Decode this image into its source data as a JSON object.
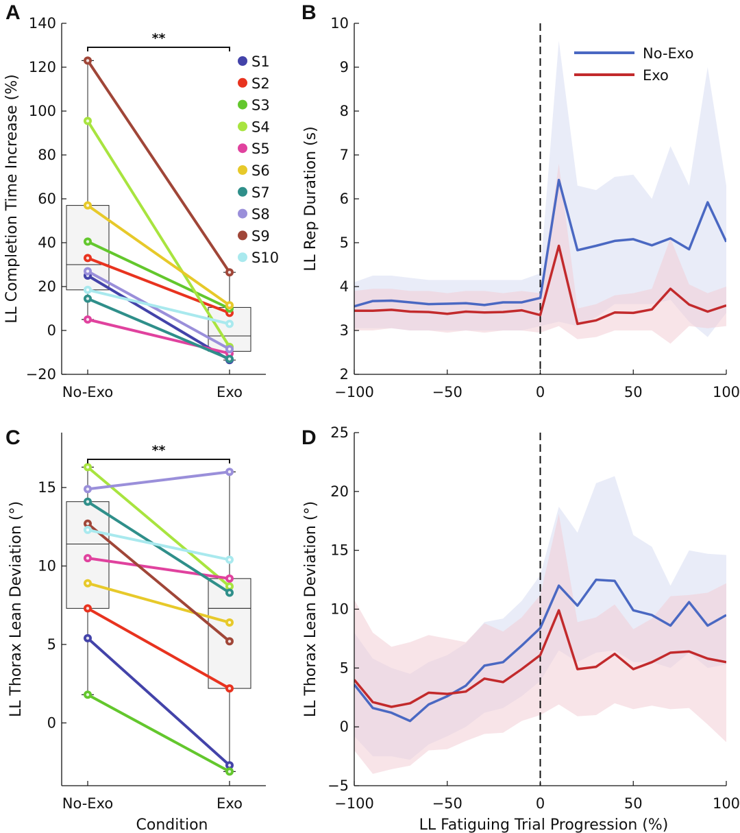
{
  "colors": {
    "S1": "#4343a9",
    "S2": "#e8331f",
    "S3": "#63c72d",
    "S4": "#a8e43f",
    "S5": "#e0429e",
    "S6": "#e7c92a",
    "S7": "#2f8f8a",
    "S8": "#9a8fda",
    "S9": "#a04638",
    "S10": "#a9e9ee",
    "no_exo": "#4a68c2",
    "exo": "#c22a2c",
    "no_exo_band": "#d7dcf3",
    "exo_band": "#f3cdd6",
    "no_exo_inner": "#bcc6ec",
    "exo_inner": "#ebb3c3"
  },
  "chart_data": [
    {
      "panel": "A",
      "type": "box+paired-lines",
      "categories": [
        "No-Exo",
        "Exo"
      ],
      "ylabel": "LL Completion Time Increase (%)",
      "xlabel": "",
      "ylim": [
        -20,
        140
      ],
      "yticks": [
        -20,
        0,
        20,
        40,
        60,
        80,
        100,
        120,
        140
      ],
      "significance": "**",
      "legend_position": "top-right",
      "boxes": [
        {
          "category": "No-Exo",
          "q1": 18.5,
          "median": 30,
          "q3": 57,
          "whisker_low": 5,
          "whisker_high": 123
        },
        {
          "category": "Exo",
          "q1": -9.5,
          "median": -2.5,
          "q3": 10.5,
          "whisker_low": -13.5,
          "whisker_high": 26.5
        }
      ],
      "series": [
        {
          "name": "S1",
          "values": [
            25,
            -13.5
          ]
        },
        {
          "name": "S2",
          "values": [
            33,
            8
          ]
        },
        {
          "name": "S3",
          "values": [
            40.5,
            10
          ]
        },
        {
          "name": "S4",
          "values": [
            95.5,
            -7.5
          ]
        },
        {
          "name": "S5",
          "values": [
            5,
            -10.5
          ]
        },
        {
          "name": "S6",
          "values": [
            57,
            11.5
          ]
        },
        {
          "name": "S7",
          "values": [
            14.5,
            -13
          ]
        },
        {
          "name": "S8",
          "values": [
            27,
            -8.5
          ]
        },
        {
          "name": "S9",
          "values": [
            123,
            26.5
          ]
        },
        {
          "name": "S10",
          "values": [
            18.5,
            3
          ]
        }
      ]
    },
    {
      "panel": "B",
      "type": "line",
      "xlabel": "",
      "ylabel": "LL Rep Duration (s)",
      "xlim": [
        -100,
        100
      ],
      "ylim": [
        2,
        10
      ],
      "xticks": [
        -100,
        -50,
        0,
        50,
        100
      ],
      "yticks": [
        2,
        3,
        4,
        5,
        6,
        7,
        8,
        9,
        10
      ],
      "vline_x": 0,
      "legend_position": "top-right",
      "x": [
        -100,
        -90,
        -80,
        -70,
        -60,
        -50,
        -40,
        -30,
        -20,
        -10,
        0,
        10,
        20,
        30,
        40,
        50,
        60,
        70,
        80,
        90,
        100
      ],
      "series": [
        {
          "name": "No-Exo",
          "values": [
            3.55,
            3.67,
            3.68,
            3.64,
            3.6,
            3.61,
            3.62,
            3.58,
            3.64,
            3.64,
            3.74,
            6.43,
            4.83,
            4.93,
            5.04,
            5.08,
            4.94,
            5.1,
            4.85,
            5.92,
            5.02
          ],
          "band_low": [
            3.05,
            3.05,
            3.05,
            3.0,
            3.0,
            3.0,
            3.0,
            3.0,
            3.0,
            3.0,
            3.1,
            3.2,
            3.1,
            3.3,
            3.6,
            3.6,
            3.6,
            3.7,
            3.2,
            2.85,
            3.4
          ],
          "band_high": [
            4.1,
            4.25,
            4.25,
            4.2,
            4.15,
            4.15,
            4.15,
            4.15,
            4.15,
            4.15,
            4.3,
            9.6,
            6.3,
            6.2,
            6.5,
            6.55,
            6.0,
            7.2,
            6.3,
            9.0,
            6.3
          ]
        },
        {
          "name": "Exo",
          "values": [
            3.45,
            3.45,
            3.47,
            3.43,
            3.42,
            3.38,
            3.43,
            3.41,
            3.42,
            3.46,
            3.35,
            4.93,
            3.15,
            3.23,
            3.41,
            3.4,
            3.48,
            3.95,
            3.59,
            3.43,
            3.57
          ],
          "band_low": [
            3.0,
            3.0,
            3.05,
            3.0,
            3.0,
            2.95,
            3.0,
            2.95,
            3.0,
            3.0,
            2.95,
            3.1,
            2.8,
            2.85,
            3.0,
            3.0,
            3.0,
            2.7,
            3.1,
            3.05,
            3.1
          ],
          "band_high": [
            3.9,
            3.95,
            3.95,
            3.9,
            3.9,
            3.85,
            3.9,
            3.9,
            3.85,
            3.9,
            3.85,
            6.8,
            3.5,
            3.6,
            3.8,
            3.85,
            3.95,
            5.1,
            4.05,
            3.85,
            4.0
          ]
        }
      ]
    },
    {
      "panel": "C",
      "type": "box+paired-lines",
      "categories": [
        "No-Exo",
        "Exo"
      ],
      "ylabel": "LL Thorax Lean Deviation (°)",
      "xlabel": "Condition",
      "ylim": [
        -4,
        18.5
      ],
      "yticks": [
        0,
        5,
        10,
        15
      ],
      "significance": "**",
      "boxes": [
        {
          "category": "No-Exo",
          "q1": 7.3,
          "median": 11.4,
          "q3": 14.1,
          "whisker_low": 1.8,
          "whisker_high": 16.3
        },
        {
          "category": "Exo",
          "q1": 2.2,
          "median": 7.3,
          "q3": 9.2,
          "whisker_low": -3.1,
          "whisker_high": 16.0
        }
      ],
      "series": [
        {
          "name": "S1",
          "values": [
            5.4,
            -2.7
          ]
        },
        {
          "name": "S2",
          "values": [
            7.3,
            2.2
          ]
        },
        {
          "name": "S3",
          "values": [
            1.8,
            -3.1
          ]
        },
        {
          "name": "S4",
          "values": [
            16.3,
            8.7
          ]
        },
        {
          "name": "S5",
          "values": [
            10.5,
            9.2
          ]
        },
        {
          "name": "S6",
          "values": [
            8.9,
            6.4
          ]
        },
        {
          "name": "S7",
          "values": [
            14.1,
            8.3
          ]
        },
        {
          "name": "S8",
          "values": [
            14.9,
            16.0
          ]
        },
        {
          "name": "S9",
          "values": [
            12.7,
            5.2
          ]
        },
        {
          "name": "S10",
          "values": [
            12.3,
            10.4
          ]
        }
      ]
    },
    {
      "panel": "D",
      "type": "line",
      "xlabel": "LL Fatiguing Trial Progression (%)",
      "ylabel": "LL Thorax Lean Deviation (°)",
      "xlim": [
        -100,
        100
      ],
      "ylim": [
        -5,
        25
      ],
      "xticks": [
        -100,
        -50,
        0,
        50,
        100
      ],
      "yticks": [
        -5,
        0,
        5,
        10,
        15,
        20,
        25
      ],
      "vline_x": 0,
      "x": [
        -100,
        -90,
        -80,
        -70,
        -60,
        -50,
        -40,
        -30,
        -20,
        -10,
        0,
        10,
        20,
        30,
        40,
        50,
        60,
        70,
        80,
        90,
        100
      ],
      "series": [
        {
          "name": "No-Exo",
          "values": [
            3.6,
            1.6,
            1.2,
            0.5,
            1.9,
            2.6,
            3.5,
            5.2,
            5.5,
            6.9,
            8.4,
            12.0,
            10.3,
            12.5,
            12.4,
            9.9,
            9.5,
            8.6,
            10.6,
            8.6,
            9.5
          ],
          "band_low": [
            -0.8,
            -2.5,
            -2.5,
            -2.8,
            -1.5,
            -0.8,
            0,
            1.2,
            1.6,
            2.6,
            3.9,
            6.5,
            5.5,
            6.3,
            6.5,
            5.5,
            5.5,
            5.0,
            6.3,
            5.0,
            5.3
          ],
          "band_high": [
            8,
            5.8,
            5.0,
            4.5,
            5.5,
            6.1,
            7.1,
            8.9,
            9.2,
            10.7,
            12.9,
            18.7,
            16.5,
            20.7,
            21.3,
            16.3,
            15.3,
            12.0,
            15.0,
            14.7,
            14.6
          ]
        },
        {
          "name": "Exo",
          "values": [
            4.0,
            2.1,
            1.7,
            2.0,
            2.9,
            2.8,
            3.0,
            4.1,
            3.8,
            4.9,
            6.1,
            9.9,
            4.9,
            5.1,
            6.2,
            4.9,
            5.5,
            6.3,
            6.4,
            5.8,
            5.5
          ],
          "band_low": [
            -2.0,
            -4.0,
            -3.6,
            -3.3,
            -2.0,
            -1.9,
            -1.2,
            -0.6,
            -0.5,
            0.5,
            1.0,
            1.9,
            0.9,
            1.0,
            2.0,
            1.5,
            1.8,
            1.5,
            1.6,
            0.2,
            -1.3
          ],
          "band_high": [
            10.8,
            8.0,
            6.8,
            7.2,
            7.8,
            7.5,
            7.2,
            8.8,
            8.1,
            9.3,
            11.2,
            18.1,
            8.9,
            9.3,
            10.4,
            8.3,
            9.2,
            11.1,
            11.2,
            11.4,
            12.2
          ]
        }
      ]
    }
  ]
}
